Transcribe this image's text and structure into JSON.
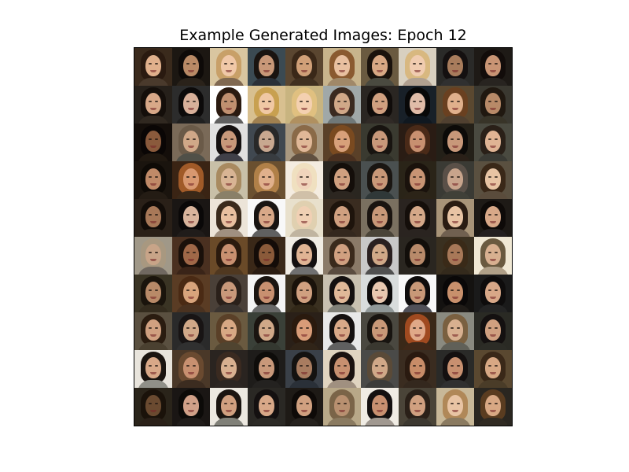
{
  "figure": {
    "title": "Example Generated Images: Epoch 12",
    "grid": {
      "rows": 10,
      "cols": 10
    }
  },
  "tiles": [
    {
      "bg": "#3a2a1c",
      "skin": "#e0b08c",
      "hair": "#2a1a10",
      "cloth": "#4a3a2c"
    },
    {
      "bg": "#1c1712",
      "skin": "#b98a66",
      "hair": "#0e0a08",
      "cloth": "#2a221a"
    },
    {
      "bg": "#d9c6a0",
      "skin": "#f0c8a8",
      "hair": "#c8a068",
      "cloth": "#806850"
    },
    {
      "bg": "#3b4a52",
      "skin": "#c89878",
      "hair": "#1a1410",
      "cloth": "#2a3038"
    },
    {
      "bg": "#5a4630",
      "skin": "#d0a078",
      "hair": "#3a2818",
      "cloth": "#403020"
    },
    {
      "bg": "#c8b48c",
      "skin": "#e8c0a0",
      "hair": "#8a5a30",
      "cloth": "#a08868"
    },
    {
      "bg": "#6a5a40",
      "skin": "#d8a884",
      "hair": "#1a120c",
      "cloth": "#4a4a40"
    },
    {
      "bg": "#d8d0c0",
      "skin": "#f0ccb0",
      "hair": "#d8b880",
      "cloth": "#b0a090"
    },
    {
      "bg": "#2a2a28",
      "skin": "#a87c5c",
      "hair": "#141010",
      "cloth": "#303030"
    },
    {
      "bg": "#1e1a16",
      "skin": "#c89474",
      "hair": "#120c0a",
      "cloth": "#282420"
    },
    {
      "bg": "#26201a",
      "skin": "#d8a888",
      "hair": "#140e0a",
      "cloth": "#302820"
    },
    {
      "bg": "#2c2c2c",
      "skin": "#d8b09a",
      "hair": "#0c0a0a",
      "cloth": "#202020"
    },
    {
      "bg": "#ffffff",
      "skin": "#c09070",
      "hair": "#2a1a10",
      "cloth": "#606060"
    },
    {
      "bg": "#d8c090",
      "skin": "#f0c8a4",
      "hair": "#c8a050",
      "cloth": "#a08050"
    },
    {
      "bg": "#c8b480",
      "skin": "#f4d0b0",
      "hair": "#e0c080",
      "cloth": "#b09060"
    },
    {
      "bg": "#a0a8a8",
      "skin": "#d0a888",
      "hair": "#3a2a20",
      "cloth": "#707878"
    },
    {
      "bg": "#2a2622",
      "skin": "#d0a080",
      "hair": "#100c0a",
      "cloth": "#302a26"
    },
    {
      "bg": "#182028",
      "skin": "#e0bca8",
      "hair": "#080808",
      "cloth": "#101820"
    },
    {
      "bg": "#5a4830",
      "skin": "#e0b08c",
      "hair": "#6a4020",
      "cloth": "#504030"
    },
    {
      "bg": "#3a3830",
      "skin": "#b88a68",
      "hair": "#201810",
      "cloth": "#383428"
    },
    {
      "bg": "#140e0a",
      "skin": "#8a5a3c",
      "hair": "#0a0605",
      "cloth": "#201810"
    },
    {
      "bg": "#7a6a58",
      "skin": "#d0a888",
      "hair": "#6a5a48",
      "cloth": "#505048"
    },
    {
      "bg": "#e0e0e0",
      "skin": "#c8987a",
      "hair": "#141010",
      "cloth": "#404048"
    },
    {
      "bg": "#404850",
      "skin": "#c8a890",
      "hair": "#282828",
      "cloth": "#383c40"
    },
    {
      "bg": "#a89880",
      "skin": "#e0b898",
      "hair": "#8a6a48",
      "cloth": "#605040"
    },
    {
      "bg": "#5a4028",
      "skin": "#d8a07a",
      "hair": "#7a4a20",
      "cloth": "#4a3020"
    },
    {
      "bg": "#3a3a30",
      "skin": "#c8987a",
      "hair": "#181410",
      "cloth": "#303028"
    },
    {
      "bg": "#2a1c14",
      "skin": "#c89070",
      "hair": "#4a2a18",
      "cloth": "#2a1e16"
    },
    {
      "bg": "#242018",
      "skin": "#c8987a",
      "hair": "#0c0a08",
      "cloth": "#2a2018"
    },
    {
      "bg": "#4a4a40",
      "skin": "#e0b494",
      "hair": "#2a2018",
      "cloth": "#3a3a34"
    },
    {
      "bg": "#1a140e",
      "skin": "#c08a68",
      "hair": "#0e0a06",
      "cloth": "#241c14"
    },
    {
      "bg": "#3a2414",
      "skin": "#d89870",
      "hair": "#a05a28",
      "cloth": "#3a2818"
    },
    {
      "bg": "#c8c0a8",
      "skin": "#d8b494",
      "hair": "#a88a60",
      "cloth": "#8a8068"
    },
    {
      "bg": "#6a5030",
      "skin": "#e0b08c",
      "hair": "#b08048",
      "cloth": "#5a4028"
    },
    {
      "bg": "#f4ece0",
      "skin": "#f0d4bc",
      "hair": "#f0e0c0",
      "cloth": "#d0c0a8"
    },
    {
      "bg": "#2a2620",
      "skin": "#d0a080",
      "hair": "#140e0a",
      "cloth": "#2c2620"
    },
    {
      "bg": "#4a5050",
      "skin": "#c89878",
      "hair": "#1a1612",
      "cloth": "#303838"
    },
    {
      "bg": "#2a2418",
      "skin": "#c89474",
      "hair": "#1a120c",
      "cloth": "#2c2418"
    },
    {
      "bg": "#3a3a34",
      "skin": "#c8a48c",
      "hair": "#5a5048",
      "cloth": "#404038"
    },
    {
      "bg": "#5a5040",
      "skin": "#e8c4a4",
      "hair": "#3a2818",
      "cloth": "#5a4c3c"
    },
    {
      "bg": "#2a2018",
      "skin": "#a87858",
      "hair": "#120c08",
      "cloth": "#2a2018"
    },
    {
      "bg": "#1a1614",
      "skin": "#d8b49c",
      "hair": "#0a0808",
      "cloth": "#201c1a"
    },
    {
      "bg": "#ece4d8",
      "skin": "#e8c0a0",
      "hair": "#3a2a1c",
      "cloth": "#a09080"
    },
    {
      "bg": "#f8f8f8",
      "skin": "#d8a888",
      "hair": "#181412",
      "cloth": "#606060"
    },
    {
      "bg": "#e8e0cc",
      "skin": "#f0d0b4",
      "hair": "#e0d0b0",
      "cloth": "#c0b4a0"
    },
    {
      "bg": "#3a2c20",
      "skin": "#d0a080",
      "hair": "#1e140c",
      "cloth": "#34281e"
    },
    {
      "bg": "#7a7060",
      "skin": "#c89878",
      "hair": "#1a1410",
      "cloth": "#4a4438"
    },
    {
      "bg": "#2a2420",
      "skin": "#d4a888",
      "hair": "#140e0a",
      "cloth": "#2a2420"
    },
    {
      "bg": "#a89478",
      "skin": "#e8c4a4",
      "hair": "#2a1c12",
      "cloth": "#706050"
    },
    {
      "bg": "#1e1a16",
      "skin": "#d8a888",
      "hair": "#0e0a08",
      "cloth": "#242020"
    },
    {
      "bg": "#a09888",
      "skin": "#c8a488",
      "hair": "#a89880",
      "cloth": "#706860"
    },
    {
      "bg": "#4a3020",
      "skin": "#a06848",
      "hair": "#1a100a",
      "cloth": "#3a2418"
    },
    {
      "bg": "#6a4a28",
      "skin": "#c89070",
      "hair": "#2a1a0e",
      "cloth": "#503820"
    },
    {
      "bg": "#3a2818",
      "skin": "#8a5a3a",
      "hair": "#140c08",
      "cloth": "#2a1c12"
    },
    {
      "bg": "#f0ece4",
      "skin": "#e0b494",
      "hair": "#141010",
      "cloth": "#707070"
    },
    {
      "bg": "#8a7a68",
      "skin": "#d0a080",
      "hair": "#3a2a1c",
      "cloth": "#5a4c40"
    },
    {
      "bg": "#c8c8c8",
      "skin": "#d0a888",
      "hair": "#2a2020",
      "cloth": "#505050"
    },
    {
      "bg": "#2a2620",
      "skin": "#b88a6a",
      "hair": "#120e0a",
      "cloth": "#2a2620"
    },
    {
      "bg": "#3a3020",
      "skin": "#a87858",
      "hair": "#3a2a18",
      "cloth": "#342a1c"
    },
    {
      "bg": "#f0e8d4",
      "skin": "#d8b090",
      "hair": "#6a5a40",
      "cloth": "#b0a088"
    },
    {
      "bg": "#3a3424",
      "skin": "#b88a68",
      "hair": "#1a140c",
      "cloth": "#342c1e"
    },
    {
      "bg": "#5a3c24",
      "skin": "#d8a47c",
      "hair": "#4a2a14",
      "cloth": "#4a3220"
    },
    {
      "bg": "#4a4038",
      "skin": "#c8987a",
      "hair": "#2a201a",
      "cloth": "#3a3430"
    },
    {
      "bg": "#f4f4f4",
      "skin": "#c89070",
      "hair": "#1a1410",
      "cloth": "#686868"
    },
    {
      "bg": "#3a3020",
      "skin": "#d0a080",
      "hair": "#1a120a",
      "cloth": "#322818"
    },
    {
      "bg": "#c8c0b0",
      "skin": "#e0b898",
      "hair": "#141010",
      "cloth": "#808078"
    },
    {
      "bg": "#d8dcdc",
      "skin": "#e8c8b0",
      "hair": "#0c0a0a",
      "cloth": "#909898"
    },
    {
      "bg": "#f8f8f8",
      "skin": "#c89878",
      "hair": "#0e0c0c",
      "cloth": "#505058"
    },
    {
      "bg": "#141210",
      "skin": "#c8906c",
      "hair": "#0a0808",
      "cloth": "#201c18"
    },
    {
      "bg": "#1a1a1a",
      "skin": "#d8a888",
      "hair": "#0e0c0c",
      "cloth": "#242424"
    },
    {
      "bg": "#5a5040",
      "skin": "#d0a080",
      "hair": "#2a1c10",
      "cloth": "#4a4030"
    },
    {
      "bg": "#2a2a2a",
      "skin": "#d0a888",
      "hair": "#181414",
      "cloth": "#303030"
    },
    {
      "bg": "#6a5a40",
      "skin": "#d8a884",
      "hair": "#5a4028",
      "cloth": "#504430"
    },
    {
      "bg": "#3a4038",
      "skin": "#d0a888",
      "hair": "#1a1410",
      "cloth": "#343830"
    },
    {
      "bg": "#2a2018",
      "skin": "#d89c78",
      "hair": "#2a1a0e",
      "cloth": "#302418"
    },
    {
      "bg": "#e8e8e8",
      "skin": "#d8a888",
      "hair": "#141010",
      "cloth": "#606060"
    },
    {
      "bg": "#4a4840",
      "skin": "#c89878",
      "hair": "#181410",
      "cloth": "#3a3830"
    },
    {
      "bg": "#3a2818",
      "skin": "#e0a888",
      "hair": "#a04a20",
      "cloth": "#402818"
    },
    {
      "bg": "#8a8a80",
      "skin": "#d8b090",
      "hair": "#7a6040",
      "cloth": "#606058"
    },
    {
      "bg": "#2a2a24",
      "skin": "#d0a080",
      "hair": "#141010",
      "cloth": "#2c2c26"
    },
    {
      "bg": "#e8e4dc",
      "skin": "#d8a888",
      "hair": "#1a1410",
      "cloth": "#909088"
    },
    {
      "bg": "#4a3828",
      "skin": "#c89070",
      "hair": "#6a4a30",
      "cloth": "#3c2c20"
    },
    {
      "bg": "#2a2420",
      "skin": "#d8b090",
      "hair": "#3a2a20",
      "cloth": "#2c2622"
    },
    {
      "bg": "#1e1c1a",
      "skin": "#c8987a",
      "hair": "#0e0c0a",
      "cloth": "#242220"
    },
    {
      "bg": "#3a4048",
      "skin": "#a87c60",
      "hair": "#141210",
      "cloth": "#2a3038"
    },
    {
      "bg": "#e0d4c0",
      "skin": "#c89070",
      "hair": "#1a1210",
      "cloth": "#a09080"
    },
    {
      "bg": "#4a4a48",
      "skin": "#d0a888",
      "hair": "#5a4a38",
      "cloth": "#3c3c3a"
    },
    {
      "bg": "#3a2c20",
      "skin": "#c88c68",
      "hair": "#2a1a10",
      "cloth": "#34281e"
    },
    {
      "bg": "#2a2a28",
      "skin": "#c89070",
      "hair": "#141010",
      "cloth": "#303030"
    },
    {
      "bg": "#5a4830",
      "skin": "#d8a884",
      "hair": "#3a2818",
      "cloth": "#4a3c28"
    },
    {
      "bg": "#2a241a",
      "skin": "#6a4a30",
      "hair": "#1a120a",
      "cloth": "#2a2018"
    },
    {
      "bg": "#1a1614",
      "skin": "#d0a088",
      "hair": "#0c0a08",
      "cloth": "#201c1a"
    },
    {
      "bg": "#ece8e0",
      "skin": "#d0a080",
      "hair": "#1a1410",
      "cloth": "#808078"
    },
    {
      "bg": "#2a2824",
      "skin": "#d8a888",
      "hair": "#141010",
      "cloth": "#2c2a26"
    },
    {
      "bg": "#1e1a16",
      "skin": "#d0a080",
      "hair": "#0e0a08",
      "cloth": "#26221e"
    },
    {
      "bg": "#b8a888",
      "skin": "#b89070",
      "hair": "#7a6448",
      "cloth": "#8a7a60"
    },
    {
      "bg": "#f0ece4",
      "skin": "#c89070",
      "hair": "#141010",
      "cloth": "#a09890"
    },
    {
      "bg": "#4a4438",
      "skin": "#d0a080",
      "hair": "#2a2018",
      "cloth": "#3c3830"
    },
    {
      "bg": "#c8b898",
      "skin": "#e8c4a4",
      "hair": "#b08858",
      "cloth": "#8a7a60"
    },
    {
      "bg": "#2a2620",
      "skin": "#d8a884",
      "hair": "#5a3c20",
      "cloth": "#302a22"
    }
  ]
}
